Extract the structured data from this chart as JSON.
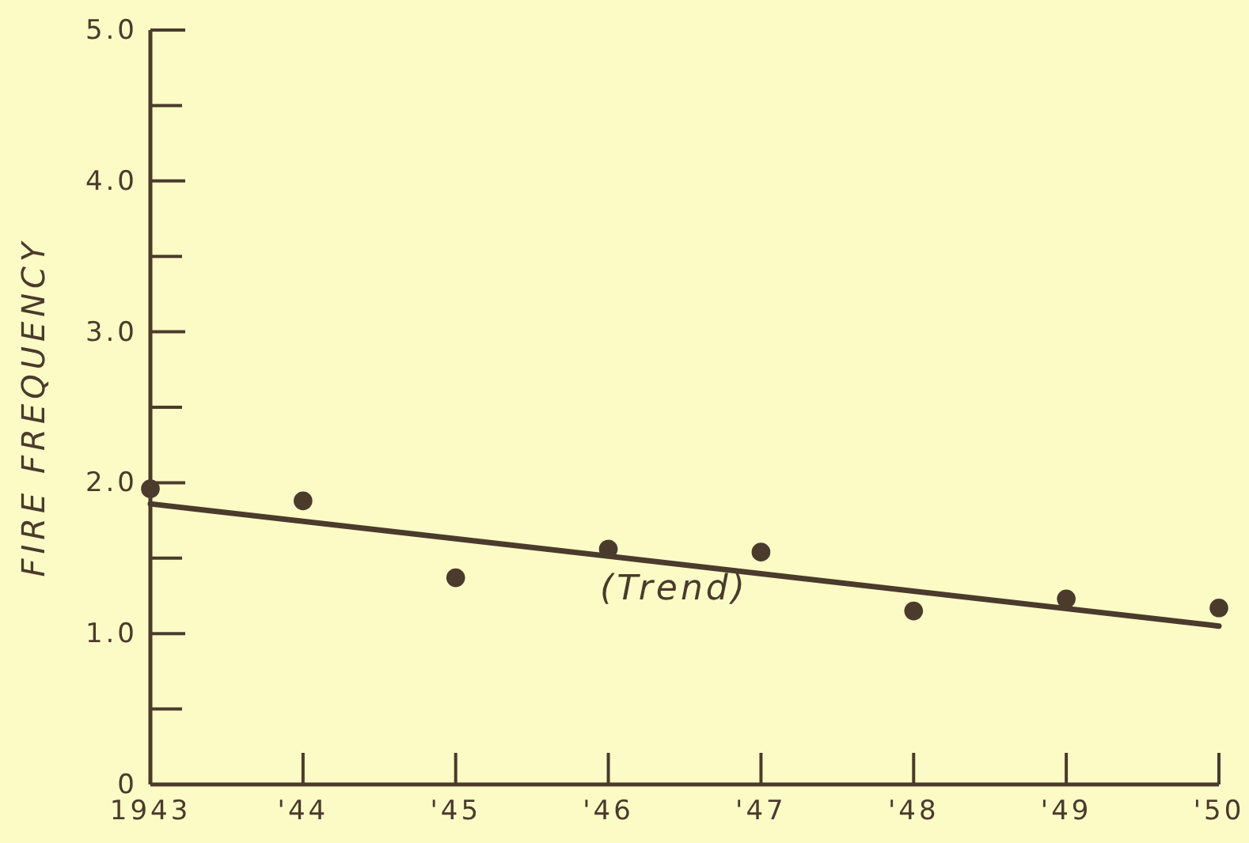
{
  "chart_data": {
    "type": "scatter",
    "ylabel": "FIRE FREQUENCY",
    "x": [
      1943,
      1944,
      1945,
      1946,
      1947,
      1948,
      1949,
      1950
    ],
    "xlim": [
      1943,
      1950
    ],
    "xticks": [
      {
        "value": 1943,
        "label": "1943"
      },
      {
        "value": 1944,
        "label": "'44"
      },
      {
        "value": 1945,
        "label": "'45"
      },
      {
        "value": 1946,
        "label": "'46"
      },
      {
        "value": 1947,
        "label": "'47"
      },
      {
        "value": 1948,
        "label": "'48"
      },
      {
        "value": 1949,
        "label": "'49"
      },
      {
        "value": 1950,
        "label": "'50"
      }
    ],
    "ylim": [
      0,
      5
    ],
    "yticks": [
      {
        "value": 0,
        "label": "0"
      },
      {
        "value": 1,
        "label": "1.0"
      },
      {
        "value": 2,
        "label": "2.0"
      },
      {
        "value": 3,
        "label": "3.0"
      },
      {
        "value": 4,
        "label": "4.0"
      },
      {
        "value": 5,
        "label": "5.0"
      }
    ],
    "grid": false,
    "series": [
      {
        "color": "#4a3b2c",
        "marker": "circle",
        "values": [
          1.96,
          1.88,
          1.37,
          1.56,
          1.54,
          1.15,
          1.23,
          1.17
        ]
      },
      {
        "type": "line",
        "color": "#4a3b2c",
        "x": [
          1943,
          1950
        ],
        "values": [
          1.86,
          1.05
        ]
      }
    ],
    "annotations": [
      "(Trend)"
    ]
  }
}
